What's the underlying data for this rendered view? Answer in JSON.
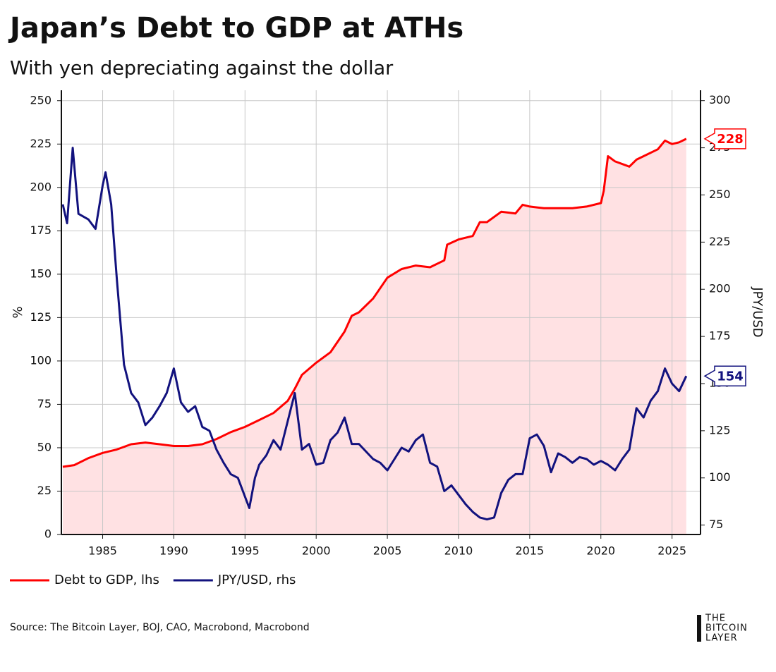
{
  "chart_data": {
    "type": "line",
    "title": "Japan’s Debt to GDP at ATHs",
    "subtitle": "With yen depreciating against the dollar",
    "ylabel": "%",
    "y2label": "JPY/USD",
    "xlim": [
      1982.1,
      2027
    ],
    "xticks": [
      1985,
      1990,
      1995,
      2000,
      2005,
      2010,
      2015,
      2020,
      2025
    ],
    "ylim": [
      0,
      256
    ],
    "yticks": [
      0,
      25,
      50,
      75,
      100,
      125,
      150,
      175,
      200,
      225,
      250
    ],
    "y2lim": [
      70,
      305.5
    ],
    "y2ticks": [
      75,
      100,
      125,
      150,
      175,
      200,
      225,
      250,
      275,
      300
    ],
    "grid": true,
    "legend": "bottom-left",
    "series": [
      {
        "name": "Debt to GDP, lhs",
        "color": "#ff0000",
        "area_color": "#ffe1e3",
        "axis": "y",
        "x": [
          1982.2,
          1983,
          1984,
          1985,
          1986,
          1987,
          1988,
          1989,
          1990,
          1991,
          1992,
          1993,
          1994,
          1995,
          1996,
          1997,
          1998,
          1998.5,
          1999,
          2000,
          2001,
          2002,
          2002.5,
          2003,
          2004,
          2005,
          2006,
          2007,
          2008,
          2009,
          2009.2,
          2010,
          2011,
          2011.5,
          2012,
          2013,
          2014,
          2014.5,
          2015,
          2016,
          2017,
          2018,
          2019,
          2020,
          2020.2,
          2020.5,
          2021,
          2022,
          2022.5,
          2023,
          2024,
          2024.5,
          2025,
          2025.5,
          2026
        ],
        "values": [
          39,
          40,
          44,
          47,
          49,
          52,
          53,
          52,
          51,
          51,
          52,
          55,
          59,
          62,
          66,
          70,
          77,
          84,
          92,
          99,
          105,
          117,
          126,
          128,
          136,
          148,
          153,
          155,
          154,
          158,
          167,
          170,
          172,
          180,
          180,
          186,
          185,
          190,
          189,
          188,
          188,
          188,
          189,
          191,
          198,
          218,
          215,
          212,
          216,
          218,
          222,
          227,
          225,
          226,
          228
        ]
      },
      {
        "name": "JPY/USD, rhs",
        "color": "#12127e",
        "axis": "y2",
        "x": [
          1982.2,
          1982.5,
          1982.9,
          1983.3,
          1984,
          1984.5,
          1985,
          1985.2,
          1985.6,
          1986,
          1986.5,
          1987,
          1987.5,
          1988,
          1988.5,
          1989,
          1989.5,
          1990,
          1990.5,
          1991,
          1991.5,
          1992,
          1992.5,
          1993,
          1993.5,
          1994,
          1994.5,
          1995.3,
          1995.7,
          1996,
          1996.5,
          1997,
          1997.5,
          1998.5,
          1999,
          1999.5,
          2000,
          2000.5,
          2001,
          2001.5,
          2002,
          2002.5,
          2003,
          2004,
          2004.5,
          2005,
          2005.5,
          2006,
          2006.5,
          2007,
          2007.5,
          2008,
          2008.5,
          2009,
          2009.5,
          2010,
          2010.5,
          2011,
          2011.5,
          2012,
          2012.5,
          2013,
          2013.5,
          2014,
          2014.5,
          2015,
          2015.5,
          2016,
          2016.5,
          2017,
          2017.5,
          2018,
          2018.5,
          2019,
          2019.5,
          2020,
          2020.5,
          2021,
          2021.5,
          2022,
          2022.5,
          2023,
          2023.5,
          2024,
          2024.5,
          2025,
          2025.5,
          2026
        ],
        "values": [
          245,
          235,
          275,
          240,
          237,
          232,
          255,
          262,
          245,
          205,
          160,
          145,
          140,
          128,
          132,
          138,
          145,
          158,
          140,
          135,
          138,
          127,
          125,
          115,
          108,
          102,
          100,
          84,
          100,
          107,
          112,
          120,
          115,
          145,
          115,
          118,
          107,
          108,
          120,
          124,
          132,
          118,
          118,
          110,
          108,
          104,
          110,
          116,
          114,
          120,
          123,
          108,
          106,
          93,
          96,
          91,
          86,
          82,
          79,
          78,
          79,
          92,
          99,
          102,
          102,
          121,
          123,
          117,
          103,
          113,
          111,
          108,
          111,
          110,
          107,
          109,
          107,
          104,
          110,
          115,
          137,
          132,
          141,
          146,
          158,
          150,
          146,
          154
        ]
      }
    ],
    "source": "Source: The Bitcoin Layer, BOJ, CAO, Macrobond, Macrobond",
    "logo": [
      "THE",
      "BITCOIN",
      "LAYER"
    ]
  }
}
